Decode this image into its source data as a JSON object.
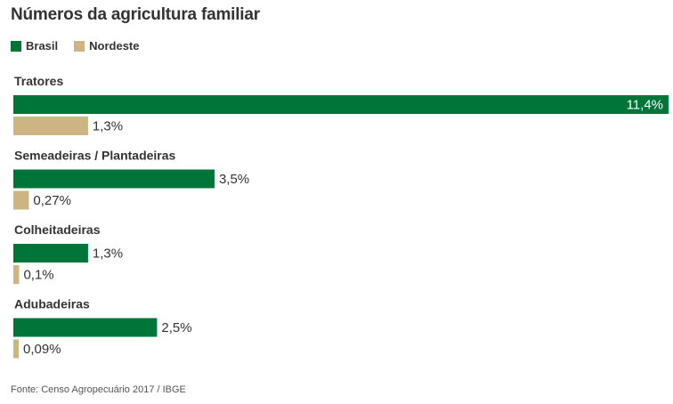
{
  "title": "Números da agricultura familiar",
  "source": "Fonte: Censo Agropecuário 2017 / IBGE",
  "colors": {
    "brasil": "#00753a",
    "nordeste": "#ccb483",
    "text": "#333333"
  },
  "chart_data": {
    "type": "bar",
    "orientation": "horizontal",
    "title": "Números da agricultura familiar",
    "categories": [
      "Tratores",
      "Semeadeiras / Plantadeiras",
      "Colheitadeiras",
      "Adubadeiras"
    ],
    "series": [
      {
        "name": "Brasil",
        "values": [
          11.4,
          3.5,
          1.3,
          2.5
        ],
        "labels": [
          "11,4%",
          "3,5%",
          "1,3%",
          "2,5%"
        ]
      },
      {
        "name": "Nordeste",
        "values": [
          1.3,
          0.27,
          0.1,
          0.09
        ],
        "labels": [
          "1,3%",
          "0,27%",
          "0,1%",
          "0,09%"
        ]
      }
    ],
    "xlim": [
      0,
      11.4
    ],
    "grid": false,
    "legend": "top-left"
  }
}
